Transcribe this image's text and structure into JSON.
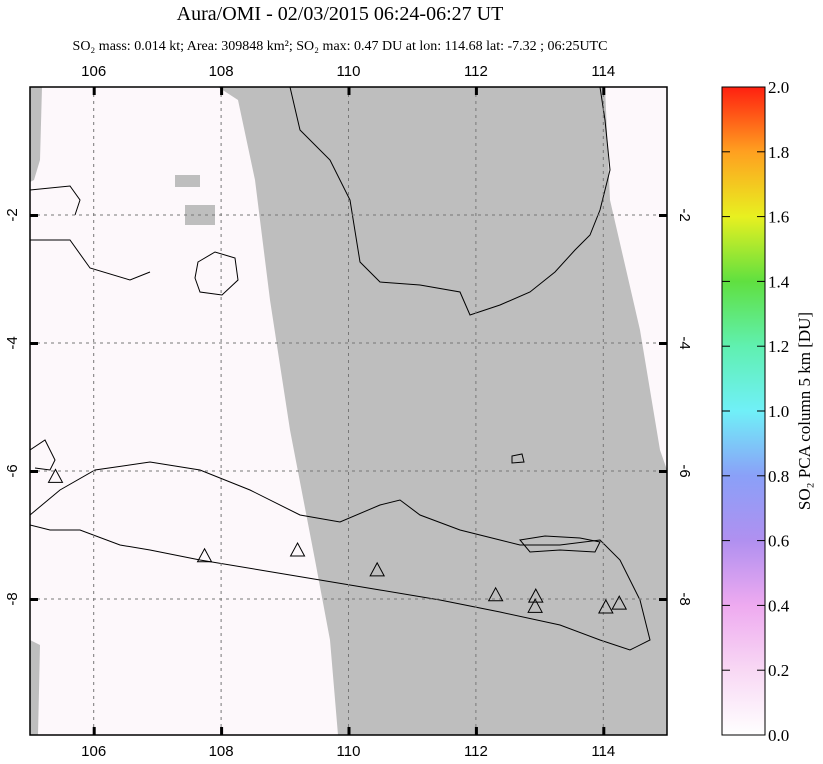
{
  "map": {
    "title": "Aura/OMI - 02/03/2015 06:24-06:27 UT",
    "subtitle": "SO₂ mass: 0.014 kt; Area: 309848 km²; SO₂ max: 0.47 DU at lon: 114.68 lat: -7.32 ; 06:25UTC",
    "lonlim": [
      105,
      115
    ],
    "latlim": [
      -10.125,
      0
    ],
    "lonticks": [
      106,
      108,
      110,
      112,
      114
    ],
    "latticks": [
      -2,
      -4,
      -6,
      -8
    ],
    "volcanoes": [
      {
        "lon": 105.4,
        "lat": -6.1
      },
      {
        "lon": 107.74,
        "lat": -7.34
      },
      {
        "lon": 109.2,
        "lat": -7.25
      },
      {
        "lon": 110.45,
        "lat": -7.56
      },
      {
        "lon": 112.31,
        "lat": -7.95
      },
      {
        "lon": 112.94,
        "lat": -7.97
      },
      {
        "lon": 112.93,
        "lat": -8.13
      },
      {
        "lon": 114.04,
        "lat": -8.14
      },
      {
        "lon": 114.25,
        "lat": -8.08
      }
    ],
    "colorbar": {
      "label": "SO₂ PCA column 5 km [DU]",
      "lim": [
        0,
        2
      ],
      "ticks": [
        {
          "value": 0,
          "label": "0.0"
        },
        {
          "value": 0.2,
          "label": "0.2"
        },
        {
          "value": 0.4,
          "label": "0.4"
        },
        {
          "value": 0.6,
          "label": "0.6"
        },
        {
          "value": 0.8,
          "label": "0.8"
        },
        {
          "value": 1,
          "label": "1.0"
        },
        {
          "value": 1.2,
          "label": "1.2"
        },
        {
          "value": 1.4,
          "label": "1.4"
        },
        {
          "value": 1.6,
          "label": "1.6"
        },
        {
          "value": 1.8,
          "label": "1.8"
        },
        {
          "value": 2,
          "label": "2.0"
        }
      ]
    }
  }
}
